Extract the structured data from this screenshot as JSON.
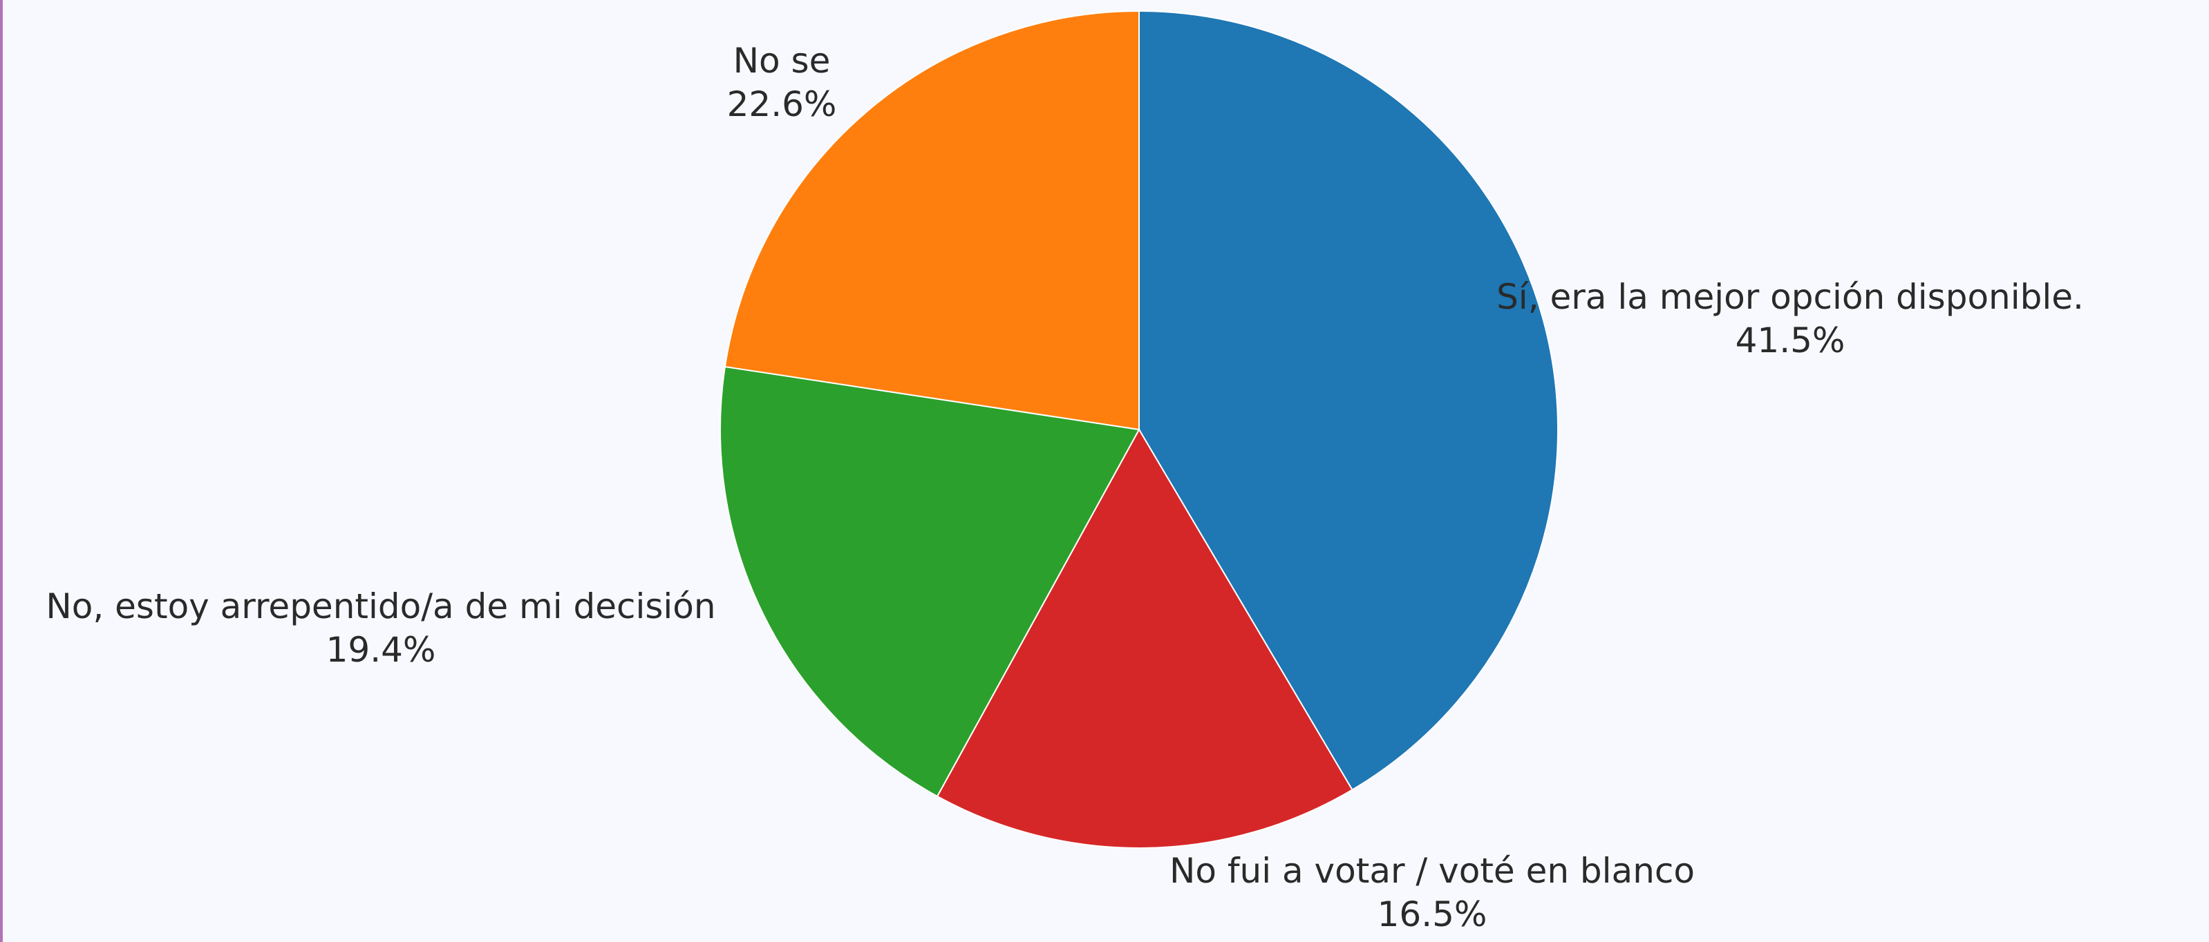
{
  "chart_data": {
    "type": "pie",
    "slices": [
      {
        "label": "Sí, era la mejor opción disponible.",
        "value": 41.5,
        "display": "41.5%",
        "color": "#1f77b4"
      },
      {
        "label": "No fui a votar / voté en blanco",
        "value": 16.5,
        "display": "16.5%",
        "color": "#d62728"
      },
      {
        "label": "No, estoy arrepentido/a de mi decisión",
        "value": 19.4,
        "display": "19.4%",
        "color": "#2ca02c"
      },
      {
        "label": "No se",
        "value": 22.6,
        "display": "22.6%",
        "color": "#ff7f0e"
      }
    ],
    "start_angle": "top",
    "direction": "clockwise"
  }
}
